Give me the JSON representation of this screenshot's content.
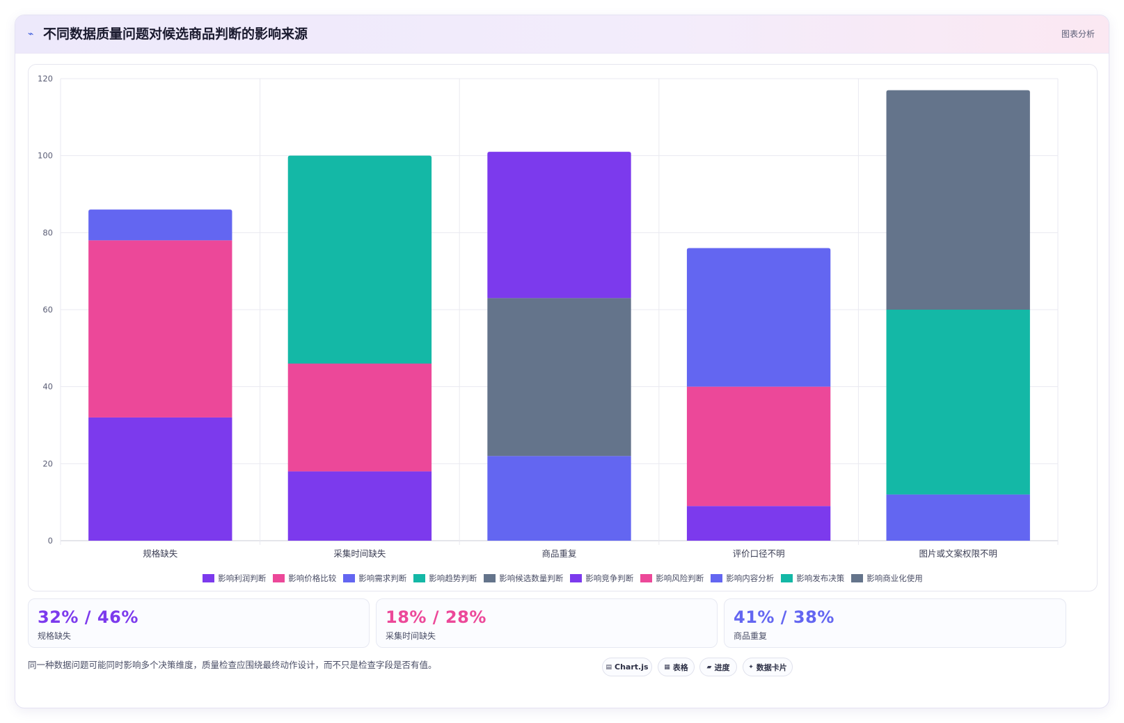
{
  "header": {
    "title": "不同数据质量问题对候选商品判断的影响来源",
    "tag": "图表分析",
    "icon": "sparkline-icon"
  },
  "chart_data": {
    "type": "bar",
    "stacked": true,
    "title": "",
    "xlabel": "",
    "ylabel": "",
    "ylim": [
      0,
      120
    ],
    "yticks": [
      0,
      20,
      40,
      60,
      80,
      100,
      120
    ],
    "grid": true,
    "legend_position": "bottom",
    "categories": [
      "规格缺失",
      "采集时间缺失",
      "商品重复",
      "评价口径不明",
      "图片或文案权限不明"
    ],
    "series": [
      {
        "name": "影响利润判断",
        "color": "#7c3aed",
        "values": [
          32,
          0,
          0,
          0,
          0
        ]
      },
      {
        "name": "影响价格比较",
        "color": "#ec4899",
        "values": [
          46,
          0,
          0,
          0,
          0
        ]
      },
      {
        "name": "影响需求判断",
        "color": "#6366f1",
        "values": [
          8,
          0,
          0,
          0,
          0
        ]
      },
      {
        "name": "影响趋势判断",
        "color": "#14b8a6",
        "values": [
          0,
          0,
          0,
          0,
          0
        ]
      },
      {
        "name": "影响候选数量判断",
        "color": "#64748b",
        "values": [
          0,
          0,
          0,
          0,
          0
        ]
      },
      {
        "name": "影响竞争判断",
        "color": "#7c3aed",
        "values": [
          0,
          18,
          0,
          9,
          0
        ]
      },
      {
        "name": "影响风险判断",
        "color": "#ec4899",
        "values": [
          0,
          28,
          0,
          31,
          0
        ]
      },
      {
        "name": "影响内容分析",
        "color": "#6366f1",
        "values": [
          0,
          0,
          22,
          36,
          12
        ]
      },
      {
        "name": "影响发布决策",
        "color": "#14b8a6",
        "values": [
          0,
          54,
          0,
          0,
          48
        ]
      },
      {
        "name": "影响商业化使用",
        "color": "#64748b",
        "values": [
          0,
          0,
          41,
          0,
          57
        ]
      }
    ],
    "extra_segments": [
      {
        "category_index": 2,
        "value": 38,
        "color": "#7c3aed"
      }
    ]
  },
  "stats": [
    {
      "value": "32% / 46%",
      "label": "规格缺失",
      "color": "#7c3aed"
    },
    {
      "value": "18% / 28%",
      "label": "采集时间缺失",
      "color": "#ec4899"
    },
    {
      "value": "41% / 38%",
      "label": "商品重复",
      "color": "#6366f1"
    }
  ],
  "footer": {
    "note": "同一种数据问题可能同时影响多个决策维度，质量检查应围绕最终动作设计，而不只是检查字段是否有值。"
  },
  "pills": [
    {
      "icon": "chart-icon",
      "glyph": "▤",
      "label": "Chart.js"
    },
    {
      "icon": "table-icon",
      "glyph": "▦",
      "label": "表格"
    },
    {
      "icon": "progress-icon",
      "glyph": "▰",
      "label": "进度"
    },
    {
      "icon": "data-card-icon",
      "glyph": "✦",
      "label": "数据卡片"
    }
  ]
}
